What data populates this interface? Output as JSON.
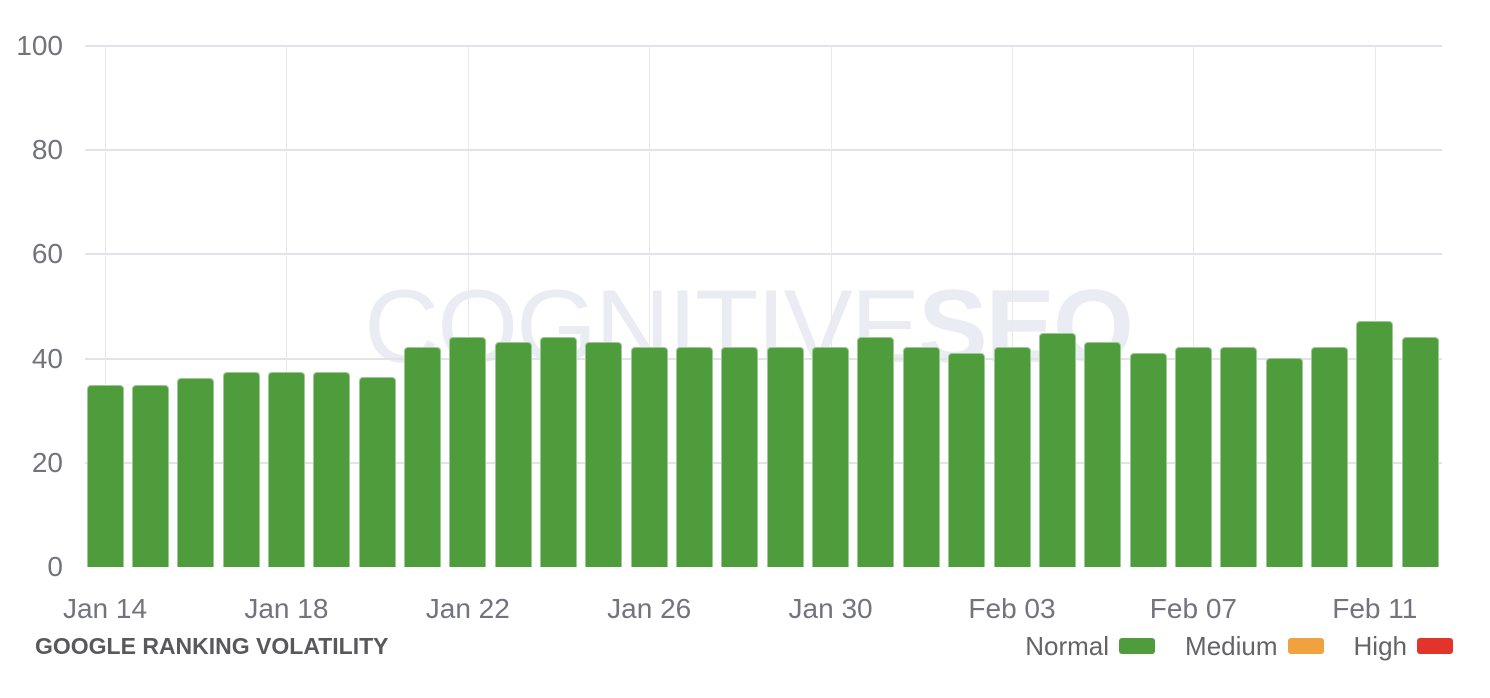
{
  "chart_data": {
    "type": "bar",
    "title": "GOOGLE RANKING VOLATILITY",
    "series_name": "Normal",
    "x": [
      "Jan 14",
      "Jan 15",
      "Jan 16",
      "Jan 17",
      "Jan 18",
      "Jan 19",
      "Jan 20",
      "Jan 21",
      "Jan 22",
      "Jan 23",
      "Jan 24",
      "Jan 25",
      "Jan 26",
      "Jan 27",
      "Jan 28",
      "Jan 29",
      "Jan 30",
      "Jan 31",
      "Feb 01",
      "Feb 02",
      "Feb 03",
      "Feb 04",
      "Feb 05",
      "Feb 06",
      "Feb 07",
      "Feb 08",
      "Feb 09",
      "Feb 10",
      "Feb 11",
      "Feb 12"
    ],
    "values": [
      35,
      35,
      36.3,
      37.4,
      37.5,
      37.4,
      36.4,
      42.2,
      44.2,
      43.1,
      44.2,
      43.1,
      42.2,
      42.2,
      42.2,
      42.2,
      42.2,
      44.2,
      42.2,
      41.1,
      42.2,
      45,
      43.2,
      41.1,
      42.2,
      42.2,
      40.1,
      42.2,
      47.2,
      44.2
    ],
    "x_tick_labels": [
      "Jan 14",
      "Jan 18",
      "Jan 22",
      "Jan 26",
      "Jan 30",
      "Feb 03",
      "Feb 07",
      "Feb 11"
    ],
    "x_tick_every": 4,
    "y_ticks": [
      0,
      20,
      40,
      60,
      80,
      100
    ],
    "ylim": [
      0,
      100
    ],
    "grid": true,
    "legend_position": "bottom-right",
    "legend": [
      {
        "label": "Normal",
        "color": "#4f9c3c"
      },
      {
        "label": "Medium",
        "color": "#f0a23f"
      },
      {
        "label": "High",
        "color": "#e2342a"
      }
    ],
    "watermark": {
      "light": "COGNITIVE",
      "bold": "SEO"
    },
    "colors": {
      "bar": "#4f9c3c",
      "grid_horizontal": "#e3e3e7",
      "grid_vertical": "#e9e9ec",
      "axis_label": "#73737f",
      "title": "#59595b",
      "legend_text": "#646467",
      "watermark": "#eaecf4",
      "background": "#ffffff"
    }
  }
}
